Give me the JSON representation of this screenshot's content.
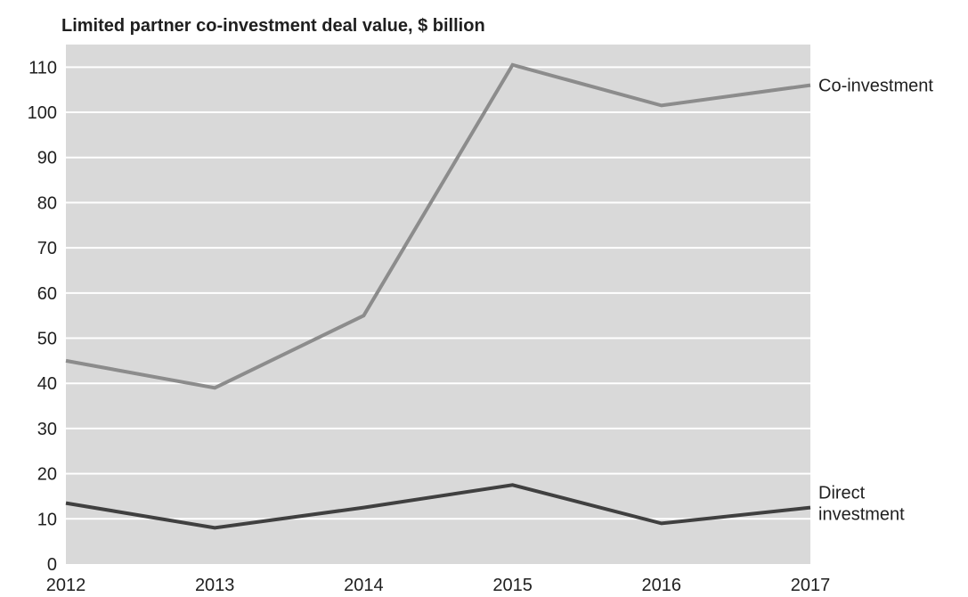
{
  "chart_data": {
    "type": "line",
    "title": "Limited partner co-investment deal value,   $ billion",
    "x": [
      "2012",
      "2013",
      "2014",
      "2015",
      "2016",
      "2017"
    ],
    "ylim": [
      0,
      115
    ],
    "yticks": [
      0,
      10,
      20,
      30,
      40,
      50,
      60,
      70,
      80,
      90,
      100,
      110
    ],
    "grid": true,
    "series": [
      {
        "name": "Co-investment",
        "label_lines": [
          "Co-investment"
        ],
        "values": [
          45,
          39,
          55,
          110.5,
          101.5,
          106
        ],
        "color": "#8c8c8c"
      },
      {
        "name": "Direct investment",
        "label_lines": [
          "Direct",
          "investment"
        ],
        "values": [
          13.5,
          8,
          12.5,
          17.5,
          9,
          12.5
        ],
        "color": "#404040"
      }
    ],
    "colors": {
      "plot_background": "#d9d9d9",
      "gridline": "#ffffff",
      "text": "#1f1f1f"
    }
  }
}
